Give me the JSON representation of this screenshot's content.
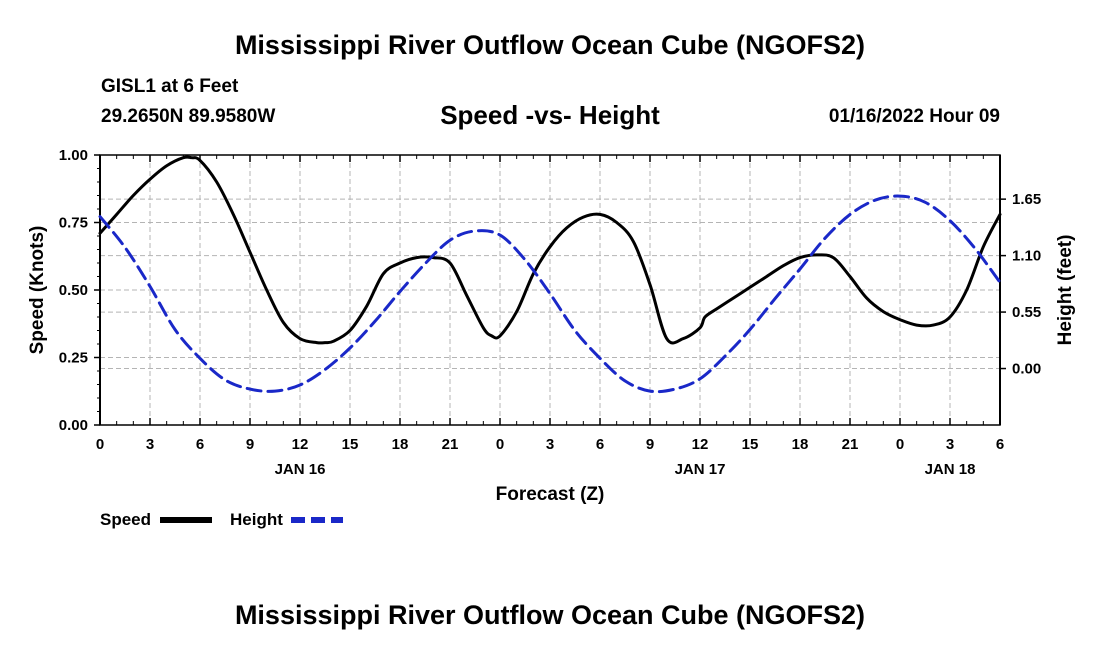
{
  "header": {
    "title": "Mississippi River Outflow Ocean Cube (NGOFS2)",
    "station": "GISL1 at 6 Feet",
    "coords": "29.2650N  89.9580W",
    "subtitle": "Speed -vs- Height",
    "datetime": "01/16/2022 Hour 09"
  },
  "footer": {
    "title": "Mississippi River Outflow Ocean Cube (NGOFS2)"
  },
  "colors": {
    "speed": "#000000",
    "height": "#1a28c8",
    "grid": "#b4b4b4"
  },
  "chart_data": {
    "type": "line",
    "title": "Speed -vs- Height",
    "xlabel": "Forecast (Z)",
    "ylabel": "Speed (Knots)",
    "y2label": "Height (feet)",
    "xlim": [
      0,
      54
    ],
    "ylim": [
      0,
      1.0
    ],
    "y2lim": [
      -0.55,
      2.08
    ],
    "x_ticks": [
      0,
      3,
      6,
      9,
      12,
      15,
      18,
      21,
      24,
      27,
      30,
      33,
      36,
      39,
      42,
      45,
      48,
      51,
      54
    ],
    "x_tick_labels": [
      "0",
      "3",
      "6",
      "9",
      "12",
      "15",
      "18",
      "21",
      "0",
      "3",
      "6",
      "9",
      "12",
      "15",
      "18",
      "21",
      "0",
      "3",
      "6"
    ],
    "y_ticks": [
      0,
      0.25,
      0.5,
      0.75,
      1.0
    ],
    "y_tick_labels": [
      "0.00",
      "0.25",
      "0.50",
      "0.75",
      "1.00"
    ],
    "y2_ticks": [
      0.0,
      0.55,
      1.1,
      1.65
    ],
    "y2_tick_labels": [
      "0.00",
      "0.55",
      "1.10",
      "1.65"
    ],
    "date_labels": [
      {
        "x": 12,
        "label": "JAN 16"
      },
      {
        "x": 36,
        "label": "JAN 17"
      },
      {
        "x": 51,
        "label": "JAN 18"
      }
    ],
    "legend": [
      {
        "name": "Speed",
        "style": "solid"
      },
      {
        "name": "Height",
        "style": "dashed"
      }
    ],
    "legend_position": "bottom-left",
    "series": [
      {
        "name": "Speed",
        "axis": "left",
        "style": "solid",
        "x": [
          0,
          1,
          2,
          3,
          4,
          5,
          5.5,
          6,
          7,
          8,
          9,
          10,
          11,
          12,
          13,
          13.5,
          14,
          15,
          16,
          17,
          18,
          19,
          20,
          21,
          22,
          23,
          23.5,
          24,
          25,
          26,
          27,
          28,
          29,
          30,
          31,
          32,
          33,
          34,
          35,
          36,
          36.3,
          37,
          38,
          39,
          40,
          41,
          42,
          43,
          44,
          45,
          46,
          47,
          48,
          49,
          50,
          51,
          52,
          53,
          54
        ],
        "values": [
          0.71,
          0.78,
          0.85,
          0.91,
          0.96,
          0.99,
          0.99,
          0.98,
          0.9,
          0.78,
          0.64,
          0.5,
          0.38,
          0.32,
          0.305,
          0.305,
          0.31,
          0.35,
          0.44,
          0.56,
          0.6,
          0.62,
          0.62,
          0.6,
          0.48,
          0.36,
          0.33,
          0.33,
          0.42,
          0.56,
          0.66,
          0.73,
          0.77,
          0.78,
          0.75,
          0.68,
          0.52,
          0.32,
          0.32,
          0.36,
          0.4,
          0.43,
          0.47,
          0.51,
          0.55,
          0.59,
          0.62,
          0.63,
          0.62,
          0.55,
          0.47,
          0.42,
          0.39,
          0.37,
          0.37,
          0.4,
          0.5,
          0.66,
          0.78
        ]
      },
      {
        "name": "Height",
        "axis": "right",
        "style": "dashed",
        "x": [
          0,
          1.5,
          3,
          4.5,
          6,
          7.5,
          9,
          10.5,
          12,
          13.5,
          15,
          16.5,
          18,
          19.5,
          21,
          22.5,
          24,
          25.5,
          27,
          28.5,
          30,
          31.5,
          33,
          34.5,
          36,
          37.5,
          39,
          40.5,
          42,
          43.5,
          45,
          46.5,
          48,
          49.5,
          51,
          52.5,
          54
        ],
        "values": [
          1.48,
          1.18,
          0.8,
          0.38,
          0.1,
          -0.11,
          -0.2,
          -0.22,
          -0.16,
          -0.01,
          0.2,
          0.46,
          0.75,
          1.02,
          1.25,
          1.34,
          1.3,
          1.06,
          0.73,
          0.37,
          0.1,
          -0.12,
          -0.22,
          -0.2,
          -0.1,
          0.12,
          0.38,
          0.68,
          0.97,
          1.27,
          1.5,
          1.64,
          1.68,
          1.62,
          1.44,
          1.17,
          0.84
        ]
      }
    ]
  }
}
